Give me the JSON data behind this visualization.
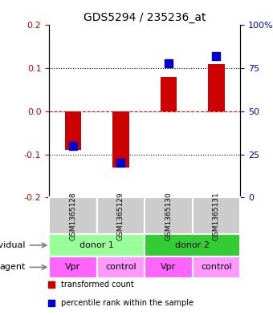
{
  "title": "GDS5294 / 235236_at",
  "samples": [
    "GSM1365128",
    "GSM1365129",
    "GSM1365130",
    "GSM1365131"
  ],
  "bar_values": [
    -0.09,
    -0.13,
    0.08,
    0.11
  ],
  "percentile_values": [
    0.3,
    0.2,
    0.78,
    0.82
  ],
  "bar_color": "#cc0000",
  "dot_color": "#0000cc",
  "ylim_left": [
    -0.2,
    0.2
  ],
  "ylim_right": [
    0,
    100
  ],
  "yticks_left": [
    -0.2,
    -0.1,
    0.0,
    0.1,
    0.2
  ],
  "yticks_right": [
    0,
    25,
    50,
    75,
    100
  ],
  "ytick_labels_right": [
    "0",
    "25",
    "50",
    "75",
    "100%"
  ],
  "grid_lines": [
    -0.1,
    0.0,
    0.1
  ],
  "grid_styles": [
    "dotted",
    "dashed",
    "dotted"
  ],
  "grid_colors": [
    "black",
    "red",
    "black"
  ],
  "individuals": [
    {
      "label": "donor 1",
      "cols": [
        0,
        1
      ],
      "color": "#99ff99"
    },
    {
      "label": "donor 2",
      "cols": [
        2,
        3
      ],
      "color": "#33cc33"
    }
  ],
  "agents": [
    {
      "label": "Vpr",
      "col": 0,
      "color": "#ff66ff"
    },
    {
      "label": "control",
      "col": 1,
      "color": "#ff99ff"
    },
    {
      "label": "Vpr",
      "col": 2,
      "color": "#ff66ff"
    },
    {
      "label": "control",
      "col": 3,
      "color": "#ff99ff"
    }
  ],
  "legend_items": [
    {
      "label": "transformed count",
      "color": "#cc0000"
    },
    {
      "label": "percentile rank within the sample",
      "color": "#0000cc"
    }
  ],
  "sample_box_color": "#cccccc",
  "left_label_color": "#cc0000",
  "right_label_color": "#0000cc",
  "bar_width": 0.35,
  "dot_size": 60
}
